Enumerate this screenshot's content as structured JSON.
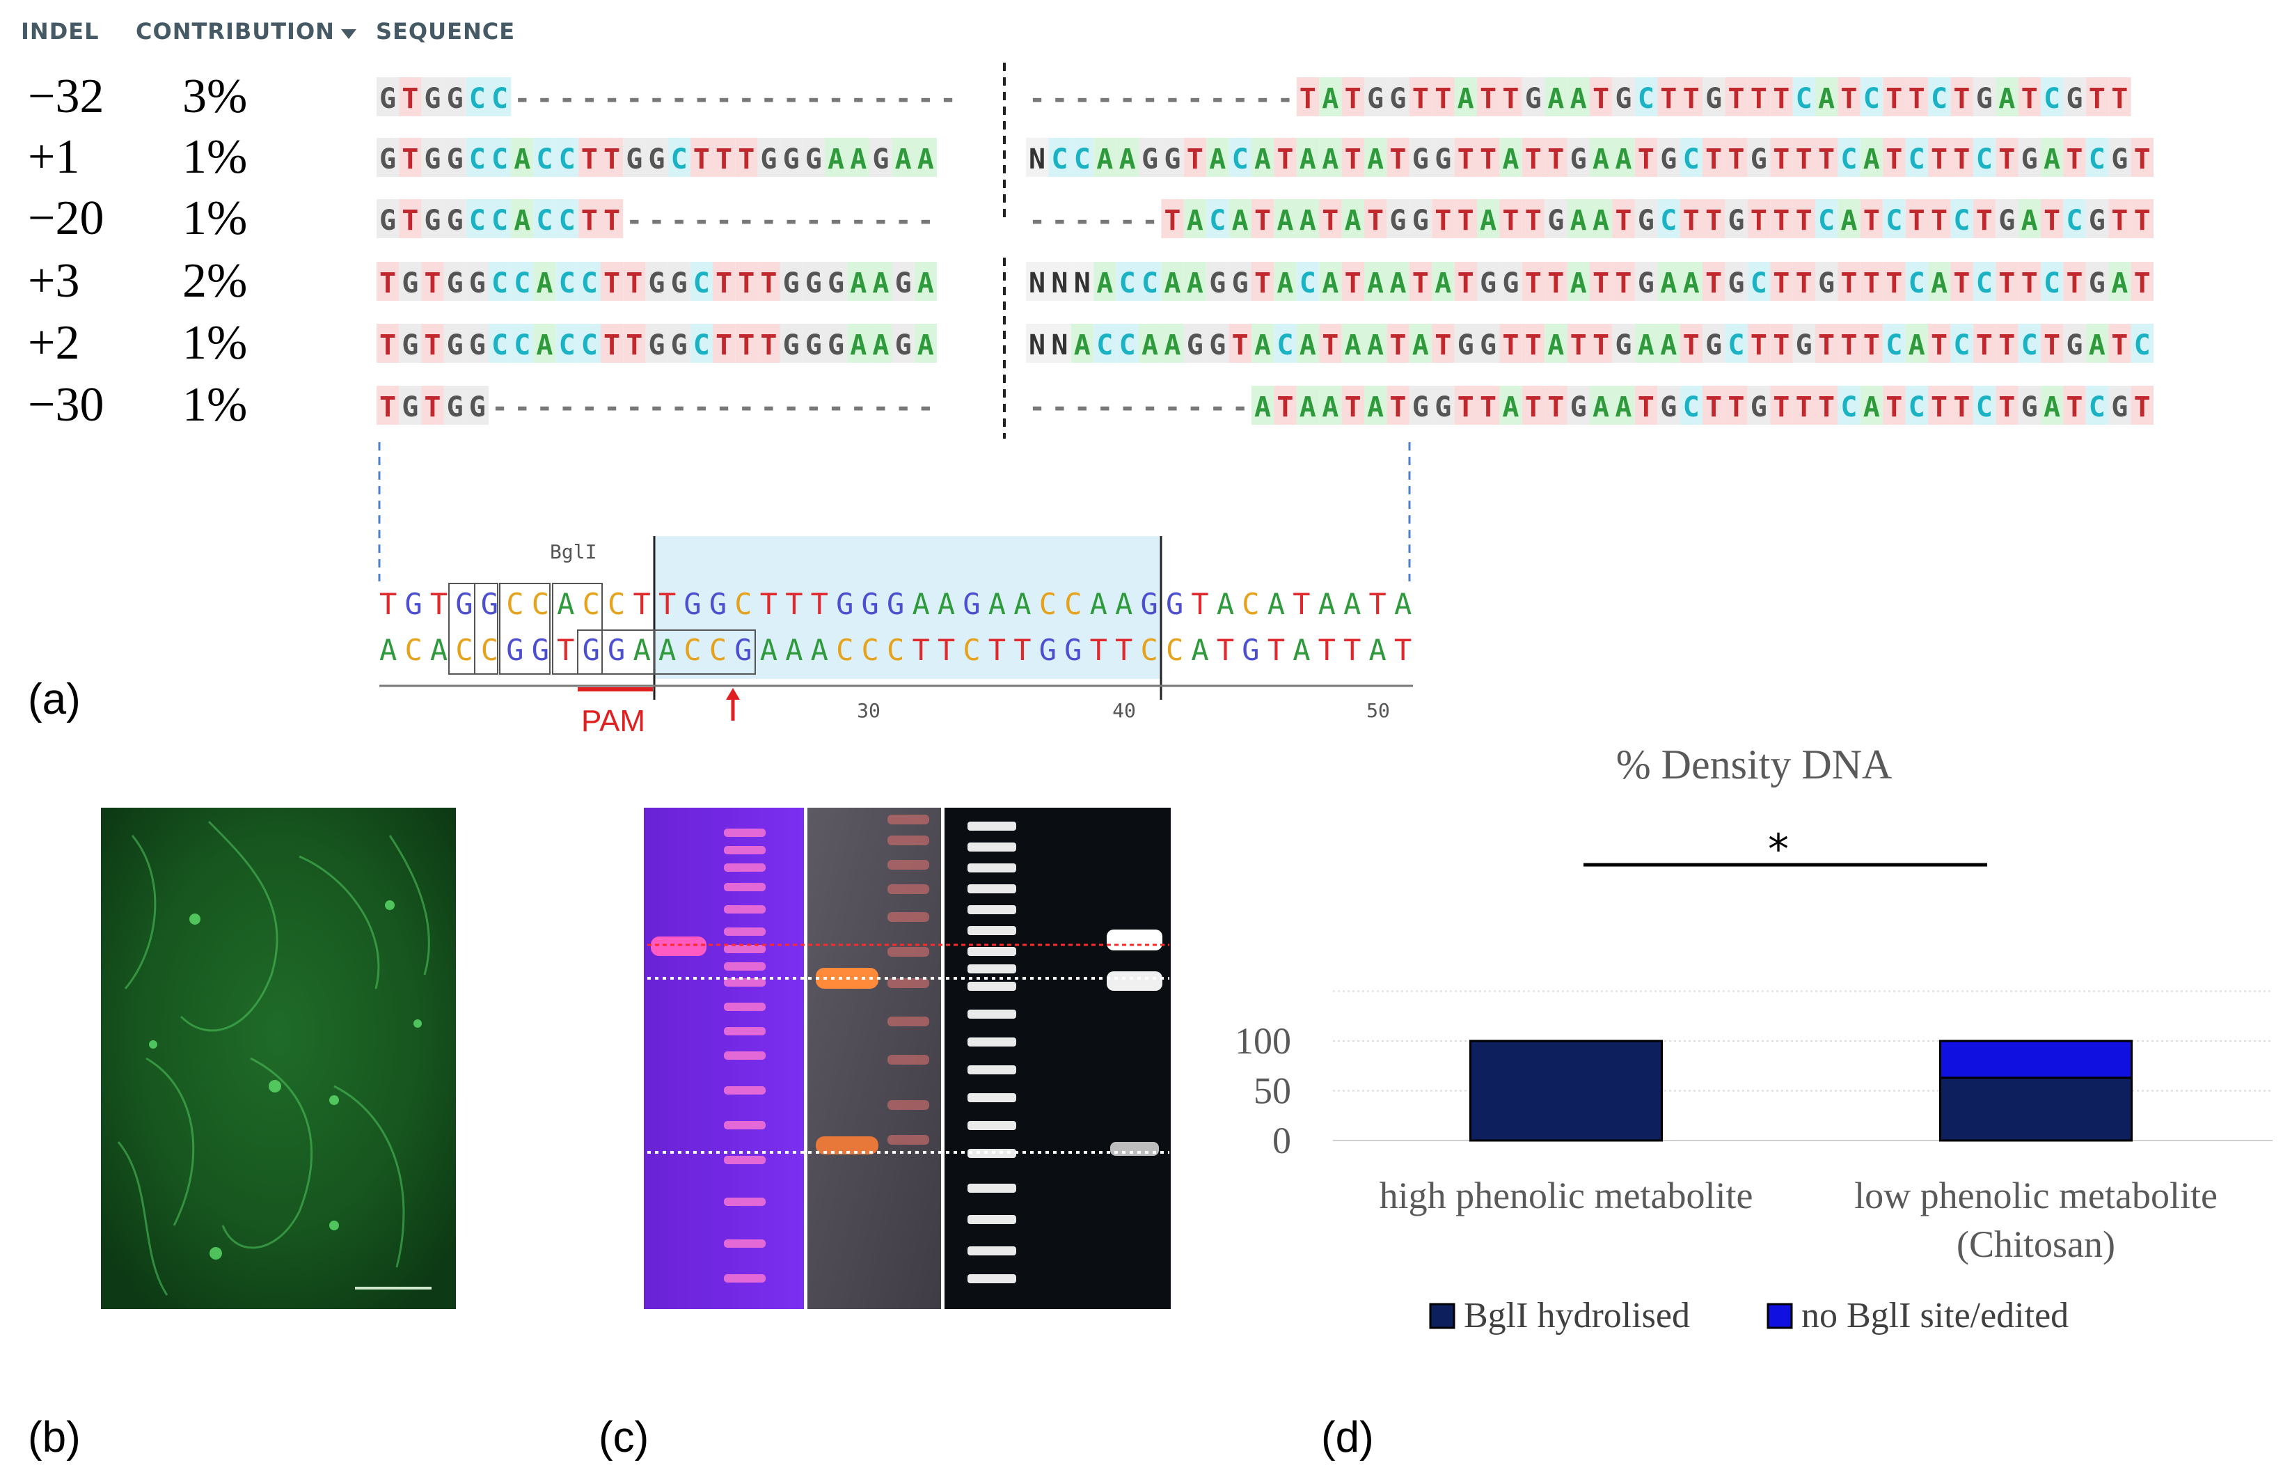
{
  "panel_a": {
    "label": "(a)",
    "headers": {
      "indel": "INDEL",
      "contribution": "CONTRIBUTION",
      "sequence": "SEQUENCE"
    },
    "rows": [
      {
        "indel": "−32",
        "contribution": "3%",
        "left": "GTGGCC--------------------",
        "right": "------------TATGGTTATTGAATGCTTGTTTCATCTTCTGATCGTT"
      },
      {
        "indel": "+1",
        "contribution": "1%",
        "left": "GTGGCCACCTTGGCTTTGGGAAGAA",
        "right": "NCCAAGGTACATAATATGGTTATTGAATGCTTGTTTCATCTTCTGATCGT"
      },
      {
        "indel": "−20",
        "contribution": "1%",
        "left": "GTGGCCACCTT--------------",
        "right": "------TACATAATATGGTTATTGAATGCTTGTTTCATCTTCTGATCGTT"
      },
      {
        "indel": "+3",
        "contribution": "2%",
        "left": "TGTGGCCACCTTGGCTTTGGGAAGA",
        "right": "NNNACCAAGGTACATAATATGGTTATTGAATGCTTGTTTCATCTTCTGAT"
      },
      {
        "indel": "+2",
        "contribution": "1%",
        "left": "TGTGGCCACCTTGGCTTTGGGAAGA",
        "right": "NNACCAAGGTACATAATATGGTTATTGAATGCTTGTTTCATCTTCTGATC"
      },
      {
        "indel": "−30",
        "contribution": "1%",
        "left": "TGTGG--------------------",
        "right": "----------ATAATATGGTTATTGAATGCTTGTTTCATCTTCTGATCGT"
      }
    ],
    "reference": {
      "enzyme_label": "BglI",
      "top_strand": "TGTGGCCACCTTGGCTTTGGGAAGAACCAAGGTACATAATA",
      "bottom_strand": "ACACCGGTGGAACCGAAACCCTTCTTGGTTCCATGTATTAT",
      "pam_label": "PAM",
      "ticks": [
        "30",
        "40",
        "50"
      ]
    },
    "colors": {
      "A": "#2e9a3c",
      "C": "#1bb3c4",
      "G": "#555555",
      "T": "#c0282d",
      "N": "#333333"
    }
  },
  "panel_b": {
    "label": "(b)"
  },
  "panel_c": {
    "label": "(c)"
  },
  "panel_d": {
    "label": "(d)",
    "significance": "*",
    "legend": [
      "BglI hydrolised",
      "no BglI site/edited"
    ],
    "chart_data": {
      "type": "bar",
      "stacked": true,
      "title": "% Density DNA",
      "categories": [
        "high phenolic metabolite",
        "low phenolic metabolite (Chitosan)"
      ],
      "category_lines": [
        [
          "high phenolic metabolite"
        ],
        [
          "low phenolic metabolite",
          "(Chitosan)"
        ]
      ],
      "series": [
        {
          "name": "BglI hydrolised",
          "values": [
            100,
            63
          ],
          "color": "#0d1f5c"
        },
        {
          "name": "no BglI site/edited",
          "values": [
            0,
            37
          ],
          "color": "#1010e0"
        }
      ],
      "yticks": [
        "0",
        "50",
        "100"
      ],
      "ylim": [
        0,
        150
      ],
      "grid": true,
      "legend_position": "bottom"
    }
  }
}
